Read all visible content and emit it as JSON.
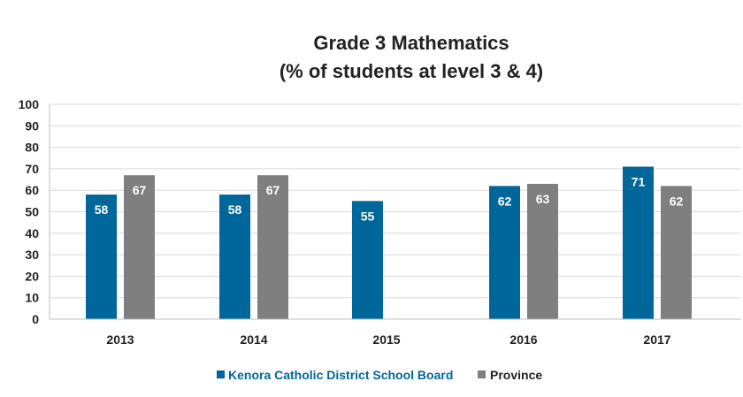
{
  "chart_data": {
    "type": "bar",
    "title_line1": "Grade 3 Mathematics",
    "title_line2": "(% of students at level 3 & 4)",
    "categories": [
      "2013",
      "2014",
      "2015",
      "2016",
      "2017"
    ],
    "series": [
      {
        "name": "Kenora Catholic District School Board",
        "color": "#00679a",
        "values": [
          58,
          58,
          55,
          62,
          71
        ],
        "labels": [
          "58",
          "58",
          "55",
          "62",
          "71"
        ]
      },
      {
        "name": "Province",
        "color": "#7f7f7f",
        "values": [
          67,
          67,
          null,
          63,
          62
        ],
        "labels": [
          "67",
          "67",
          "",
          "63",
          "62"
        ]
      }
    ],
    "ylim": [
      0,
      100
    ],
    "yticks": [
      "0",
      "10",
      "20",
      "30",
      "40",
      "50",
      "60",
      "70",
      "80",
      "90",
      "100"
    ],
    "grid": true,
    "legend": "bottom-center",
    "colors": {
      "grid": "#d9d9d9",
      "axis": "#bfbfbf",
      "text": "#222222"
    }
  }
}
